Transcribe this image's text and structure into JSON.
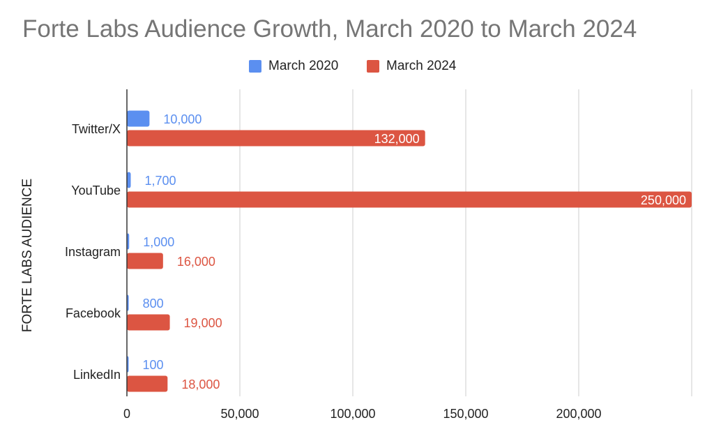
{
  "chart_data": {
    "type": "bar",
    "orientation": "horizontal",
    "title": "Forte Labs Audience Growth, March 2020 to March 2024",
    "xlabel": "",
    "ylabel": "FORTE LABS AUDIENCE",
    "categories": [
      "Twitter/X",
      "YouTube",
      "Instagram",
      "Facebook",
      "LinkedIn"
    ],
    "series": [
      {
        "name": "March 2020",
        "color": "#5b8ff0",
        "values": [
          10000,
          1700,
          1000,
          800,
          100
        ],
        "labels": [
          "10,000",
          "1,700",
          "1,000",
          "800",
          "100"
        ]
      },
      {
        "name": "March 2024",
        "color": "#dc5542",
        "values": [
          132000,
          250000,
          16000,
          19000,
          18000
        ],
        "labels": [
          "132,000",
          "250,000",
          "16,000",
          "19,000",
          "18,000"
        ]
      }
    ],
    "xlim": [
      0,
      250000
    ],
    "xticks": [
      0,
      50000,
      100000,
      150000,
      200000
    ],
    "xtick_labels": [
      "0",
      "50,000",
      "100,000",
      "150,000",
      "200,000"
    ],
    "grid": true,
    "legend_position": "top-center"
  }
}
